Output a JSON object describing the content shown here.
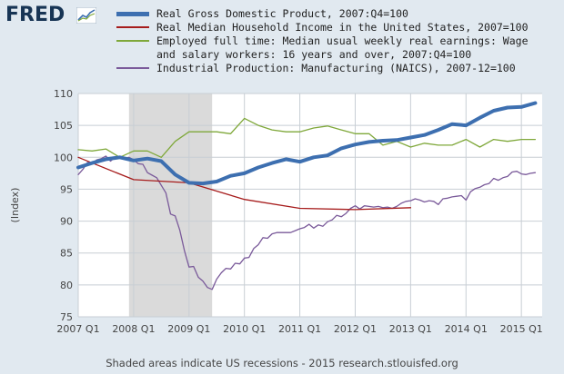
{
  "brand": {
    "logo_text": "FRED"
  },
  "footer": {
    "note": "Shaded areas indicate US recessions - 2015 research.stlouisfed.org"
  },
  "colors": {
    "background": "#e1e9f0",
    "plot_bg": "#ffffff",
    "recession": "#dadada",
    "grid": "#c8ced4"
  },
  "chart_data": {
    "type": "line",
    "title": "",
    "xlabel": "",
    "ylabel": "(Index)",
    "ylim": [
      75,
      110
    ],
    "yticks": [
      75,
      80,
      85,
      90,
      95,
      100,
      105,
      110
    ],
    "xlim": [
      2007.0,
      2015.375
    ],
    "xticks": [
      {
        "value": 2007.0,
        "label": "2007 Q1"
      },
      {
        "value": 2008.0,
        "label": "2008 Q1"
      },
      {
        "value": 2009.0,
        "label": "2009 Q1"
      },
      {
        "value": 2010.0,
        "label": "2010 Q1"
      },
      {
        "value": 2011.0,
        "label": "2011 Q1"
      },
      {
        "value": 2012.0,
        "label": "2012 Q1"
      },
      {
        "value": 2013.0,
        "label": "2013 Q1"
      },
      {
        "value": 2014.0,
        "label": "2014 Q1"
      },
      {
        "value": 2015.0,
        "label": "2015 Q1"
      }
    ],
    "grid": true,
    "legend_position": "top",
    "recession": {
      "start": 2007.917,
      "end": 2009.417
    },
    "series": [
      {
        "name": "Real Gross Domestic Product, 2007:Q4=100",
        "color": "#3d6fb0",
        "width": 4,
        "points": [
          [
            2007.0,
            98.4
          ],
          [
            2007.25,
            99.1
          ],
          [
            2007.5,
            99.7
          ],
          [
            2007.75,
            100.0
          ],
          [
            2008.0,
            99.5
          ],
          [
            2008.25,
            99.8
          ],
          [
            2008.5,
            99.4
          ],
          [
            2008.75,
            97.3
          ],
          [
            2009.0,
            96.0
          ],
          [
            2009.25,
            95.9
          ],
          [
            2009.5,
            96.2
          ],
          [
            2009.75,
            97.1
          ],
          [
            2010.0,
            97.5
          ],
          [
            2010.25,
            98.4
          ],
          [
            2010.5,
            99.1
          ],
          [
            2010.75,
            99.7
          ],
          [
            2011.0,
            99.3
          ],
          [
            2011.25,
            100.0
          ],
          [
            2011.5,
            100.3
          ],
          [
            2011.75,
            101.4
          ],
          [
            2012.0,
            102.0
          ],
          [
            2012.25,
            102.4
          ],
          [
            2012.5,
            102.6
          ],
          [
            2012.75,
            102.7
          ],
          [
            2013.0,
            103.1
          ],
          [
            2013.25,
            103.5
          ],
          [
            2013.5,
            104.3
          ],
          [
            2013.75,
            105.2
          ],
          [
            2014.0,
            105.0
          ],
          [
            2014.25,
            106.2
          ],
          [
            2014.5,
            107.3
          ],
          [
            2014.75,
            107.8
          ],
          [
            2015.0,
            107.9
          ],
          [
            2015.25,
            108.5
          ]
        ]
      },
      {
        "name": "Real Median Household Income in the United States, 2007=100",
        "color": "#a61c1c",
        "width": 1.3,
        "points": [
          [
            2007.0,
            100.0
          ],
          [
            2008.0,
            96.5
          ],
          [
            2009.0,
            96.0
          ],
          [
            2010.0,
            93.4
          ],
          [
            2011.0,
            92.0
          ],
          [
            2012.0,
            91.8
          ],
          [
            2013.0,
            92.1
          ]
        ]
      },
      {
        "name": "Employed full time: Median usual weekly real earnings: Wage and salary workers: 16 years and over, 2007:Q4=100",
        "color": "#7fa83a",
        "width": 1.3,
        "points": [
          [
            2007.0,
            101.2
          ],
          [
            2007.25,
            101.0
          ],
          [
            2007.5,
            101.3
          ],
          [
            2007.75,
            100.0
          ],
          [
            2008.0,
            101.0
          ],
          [
            2008.25,
            101.0
          ],
          [
            2008.5,
            100.0
          ],
          [
            2008.75,
            102.5
          ],
          [
            2009.0,
            104.0
          ],
          [
            2009.25,
            104.0
          ],
          [
            2009.5,
            104.0
          ],
          [
            2009.75,
            103.7
          ],
          [
            2010.0,
            106.1
          ],
          [
            2010.25,
            105.0
          ],
          [
            2010.5,
            104.3
          ],
          [
            2010.75,
            104.0
          ],
          [
            2011.0,
            104.0
          ],
          [
            2011.25,
            104.6
          ],
          [
            2011.5,
            104.9
          ],
          [
            2011.75,
            104.3
          ],
          [
            2012.0,
            103.7
          ],
          [
            2012.25,
            103.7
          ],
          [
            2012.5,
            101.9
          ],
          [
            2012.75,
            102.5
          ],
          [
            2013.0,
            101.6
          ],
          [
            2013.25,
            102.2
          ],
          [
            2013.5,
            101.9
          ],
          [
            2013.75,
            101.9
          ],
          [
            2014.0,
            102.8
          ],
          [
            2014.25,
            101.6
          ],
          [
            2014.5,
            102.8
          ],
          [
            2014.75,
            102.5
          ],
          [
            2015.0,
            102.8
          ],
          [
            2015.25,
            102.8
          ]
        ]
      },
      {
        "name": "Industrial Production: Manufacturing (NAICS), 2007-12=100",
        "color": "#7a5a9a",
        "width": 1.3,
        "points": [
          [
            2007.0,
            97.3
          ],
          [
            2007.083,
            98.1
          ],
          [
            2007.167,
            99.2
          ],
          [
            2007.25,
            99.0
          ],
          [
            2007.333,
            99.6
          ],
          [
            2007.417,
            99.8
          ],
          [
            2007.5,
            100.2
          ],
          [
            2007.583,
            99.4
          ],
          [
            2007.667,
            100.0
          ],
          [
            2007.75,
            100.1
          ],
          [
            2007.833,
            99.8
          ],
          [
            2007.917,
            100.0
          ],
          [
            2008.0,
            99.6
          ],
          [
            2008.083,
            99.0
          ],
          [
            2008.167,
            98.9
          ],
          [
            2008.25,
            97.6
          ],
          [
            2008.333,
            97.2
          ],
          [
            2008.417,
            96.8
          ],
          [
            2008.5,
            95.6
          ],
          [
            2008.583,
            94.4
          ],
          [
            2008.667,
            91.1
          ],
          [
            2008.75,
            90.8
          ],
          [
            2008.833,
            88.6
          ],
          [
            2008.917,
            85.4
          ],
          [
            2009.0,
            82.8
          ],
          [
            2009.083,
            82.9
          ],
          [
            2009.167,
            81.2
          ],
          [
            2009.25,
            80.6
          ],
          [
            2009.333,
            79.6
          ],
          [
            2009.417,
            79.3
          ],
          [
            2009.5,
            80.9
          ],
          [
            2009.583,
            81.9
          ],
          [
            2009.667,
            82.6
          ],
          [
            2009.75,
            82.5
          ],
          [
            2009.833,
            83.4
          ],
          [
            2009.917,
            83.3
          ],
          [
            2010.0,
            84.2
          ],
          [
            2010.083,
            84.3
          ],
          [
            2010.167,
            85.7
          ],
          [
            2010.25,
            86.3
          ],
          [
            2010.333,
            87.4
          ],
          [
            2010.417,
            87.3
          ],
          [
            2010.5,
            88.0
          ],
          [
            2010.583,
            88.2
          ],
          [
            2010.667,
            88.2
          ],
          [
            2010.75,
            88.2
          ],
          [
            2010.833,
            88.2
          ],
          [
            2010.917,
            88.5
          ],
          [
            2011.0,
            88.8
          ],
          [
            2011.083,
            89.0
          ],
          [
            2011.167,
            89.5
          ],
          [
            2011.25,
            88.9
          ],
          [
            2011.333,
            89.4
          ],
          [
            2011.417,
            89.2
          ],
          [
            2011.5,
            89.9
          ],
          [
            2011.583,
            90.2
          ],
          [
            2011.667,
            90.9
          ],
          [
            2011.75,
            90.7
          ],
          [
            2011.833,
            91.2
          ],
          [
            2011.917,
            92.0
          ],
          [
            2012.0,
            92.4
          ],
          [
            2012.083,
            91.9
          ],
          [
            2012.167,
            92.4
          ],
          [
            2012.25,
            92.3
          ],
          [
            2012.333,
            92.2
          ],
          [
            2012.417,
            92.3
          ],
          [
            2012.5,
            92.1
          ],
          [
            2012.583,
            92.2
          ],
          [
            2012.667,
            92.0
          ],
          [
            2012.75,
            92.3
          ],
          [
            2012.833,
            92.8
          ],
          [
            2012.917,
            93.1
          ],
          [
            2013.0,
            93.2
          ],
          [
            2013.083,
            93.5
          ],
          [
            2013.167,
            93.3
          ],
          [
            2013.25,
            93.0
          ],
          [
            2013.333,
            93.2
          ],
          [
            2013.417,
            93.1
          ],
          [
            2013.5,
            92.6
          ],
          [
            2013.583,
            93.5
          ],
          [
            2013.667,
            93.6
          ],
          [
            2013.75,
            93.8
          ],
          [
            2013.833,
            93.9
          ],
          [
            2013.917,
            94.0
          ],
          [
            2014.0,
            93.3
          ],
          [
            2014.083,
            94.6
          ],
          [
            2014.167,
            95.1
          ],
          [
            2014.25,
            95.3
          ],
          [
            2014.333,
            95.7
          ],
          [
            2014.417,
            95.9
          ],
          [
            2014.5,
            96.7
          ],
          [
            2014.583,
            96.4
          ],
          [
            2014.667,
            96.8
          ],
          [
            2014.75,
            97.0
          ],
          [
            2014.833,
            97.7
          ],
          [
            2014.917,
            97.8
          ],
          [
            2015.0,
            97.4
          ],
          [
            2015.083,
            97.3
          ],
          [
            2015.167,
            97.5
          ],
          [
            2015.25,
            97.6
          ]
        ]
      }
    ]
  }
}
